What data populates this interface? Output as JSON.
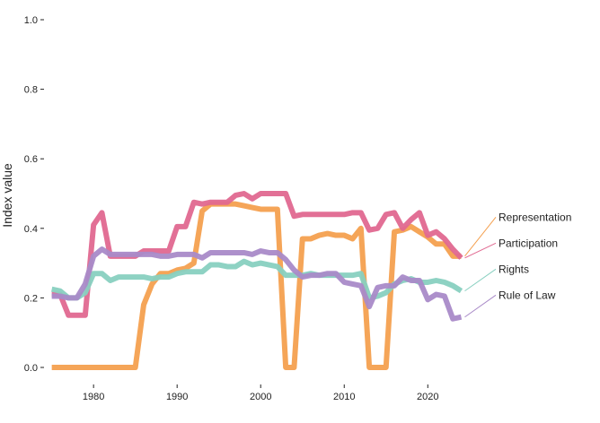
{
  "chart_data": {
    "type": "line",
    "title": "",
    "xlabel": "",
    "ylabel": "Index value",
    "xlim": [
      1974.5,
      2029
    ],
    "ylim": [
      0,
      1.0
    ],
    "x_ticks": [
      1980,
      1990,
      2000,
      2010,
      2020
    ],
    "y_ticks": [
      0.0,
      0.2,
      0.4,
      0.6,
      0.8,
      1.0
    ],
    "y_tick_labels": [
      "0.0",
      "0.2",
      "0.4",
      "0.6",
      "0.8",
      "1.0"
    ],
    "grid": false,
    "legend": "direct labels at right end of lines",
    "x": [
      1975,
      1976,
      1977,
      1978,
      1979,
      1980,
      1981,
      1982,
      1983,
      1984,
      1985,
      1986,
      1987,
      1988,
      1989,
      1990,
      1991,
      1992,
      1993,
      1994,
      1995,
      1996,
      1997,
      1998,
      1999,
      2000,
      2001,
      2002,
      2003,
      2004,
      2005,
      2006,
      2007,
      2008,
      2009,
      2010,
      2011,
      2012,
      2013,
      2014,
      2015,
      2016,
      2017,
      2018,
      2019,
      2020,
      2021,
      2022,
      2023,
      2024
    ],
    "series": [
      {
        "name": "Representation",
        "color": "#F4A04F",
        "values": [
          0,
          0,
          0,
          0,
          0,
          0,
          0,
          0,
          0,
          0,
          0,
          0.18,
          0.24,
          0.27,
          0.27,
          0.28,
          0.285,
          0.3,
          0.45,
          0.47,
          0.47,
          0.47,
          0.47,
          0.465,
          0.46,
          0.455,
          0.455,
          0.455,
          0,
          0,
          0.37,
          0.37,
          0.38,
          0.385,
          0.38,
          0.38,
          0.37,
          0.4,
          0,
          0,
          0,
          0.39,
          0.395,
          0.405,
          0.39,
          0.375,
          0.355,
          0.355,
          0.32,
          0.32
        ]
      },
      {
        "name": "Participation",
        "color": "#E06890",
        "values": [
          0.21,
          0.21,
          0.15,
          0.15,
          0.15,
          0.41,
          0.445,
          0.32,
          0.32,
          0.32,
          0.32,
          0.335,
          0.335,
          0.335,
          0.335,
          0.405,
          0.405,
          0.475,
          0.47,
          0.475,
          0.475,
          0.475,
          0.495,
          0.5,
          0.485,
          0.5,
          0.5,
          0.5,
          0.5,
          0.435,
          0.44,
          0.44,
          0.44,
          0.44,
          0.44,
          0.44,
          0.445,
          0.445,
          0.395,
          0.4,
          0.44,
          0.445,
          0.4,
          0.425,
          0.445,
          0.38,
          0.39,
          0.37,
          0.34,
          0.315
        ]
      },
      {
        "name": "Rights",
        "color": "#88D0C0",
        "values": [
          0.225,
          0.22,
          0.2,
          0.2,
          0.215,
          0.27,
          0.27,
          0.25,
          0.26,
          0.26,
          0.26,
          0.26,
          0.255,
          0.26,
          0.26,
          0.27,
          0.275,
          0.275,
          0.275,
          0.295,
          0.295,
          0.29,
          0.29,
          0.305,
          0.295,
          0.3,
          0.295,
          0.29,
          0.265,
          0.265,
          0.265,
          0.27,
          0.265,
          0.265,
          0.265,
          0.265,
          0.265,
          0.27,
          0.2,
          0.205,
          0.215,
          0.24,
          0.25,
          0.255,
          0.245,
          0.245,
          0.25,
          0.245,
          0.235,
          0.22
        ]
      },
      {
        "name": "Rule of Law",
        "color": "#A98AC8",
        "values": [
          0.205,
          0.205,
          0.2,
          0.2,
          0.24,
          0.32,
          0.34,
          0.325,
          0.325,
          0.325,
          0.325,
          0.325,
          0.325,
          0.32,
          0.32,
          0.325,
          0.325,
          0.325,
          0.315,
          0.33,
          0.33,
          0.33,
          0.33,
          0.33,
          0.325,
          0.335,
          0.33,
          0.33,
          0.31,
          0.28,
          0.26,
          0.265,
          0.265,
          0.27,
          0.27,
          0.245,
          0.24,
          0.235,
          0.175,
          0.23,
          0.235,
          0.235,
          0.26,
          0.25,
          0.25,
          0.195,
          0.21,
          0.205,
          0.14,
          0.145
        ]
      }
    ]
  }
}
